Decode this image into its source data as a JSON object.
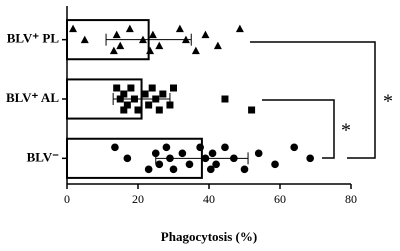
{
  "chart_data": {
    "type": "bar",
    "orientation": "horizontal",
    "categories": [
      "BLV⁺ PL",
      "BLV⁺ AL",
      "BLV⁻"
    ],
    "values": [
      23,
      21,
      38
    ],
    "errors": [
      12,
      8,
      13
    ],
    "points": [
      [
        1.7,
        5,
        13.2,
        14,
        15,
        17.7,
        21.4,
        23.4,
        24.2,
        26,
        31.8,
        33.5,
        36.3,
        39,
        42.5,
        48.7
      ],
      [
        14,
        15,
        16,
        16,
        17,
        18,
        19,
        20,
        22,
        23,
        24,
        25,
        26,
        27,
        29,
        30,
        44.5,
        52
      ],
      [
        13.5,
        17,
        23,
        25,
        26,
        28,
        29,
        30,
        32.5,
        34.5,
        37.5,
        39,
        40.5,
        41,
        42,
        44.5,
        47,
        50,
        54,
        58.6,
        64,
        68.5
      ]
    ],
    "markers": [
      "triangle",
      "square",
      "circle"
    ],
    "color": "#000000",
    "bar_fill": "#ffffff",
    "xlabel": "Phagocytosis (%)",
    "xlim": [
      0,
      80
    ],
    "xticks": [
      0,
      20,
      40,
      60,
      80
    ],
    "annotations": [
      {
        "text": "*"
      },
      {
        "text": "*"
      }
    ]
  }
}
